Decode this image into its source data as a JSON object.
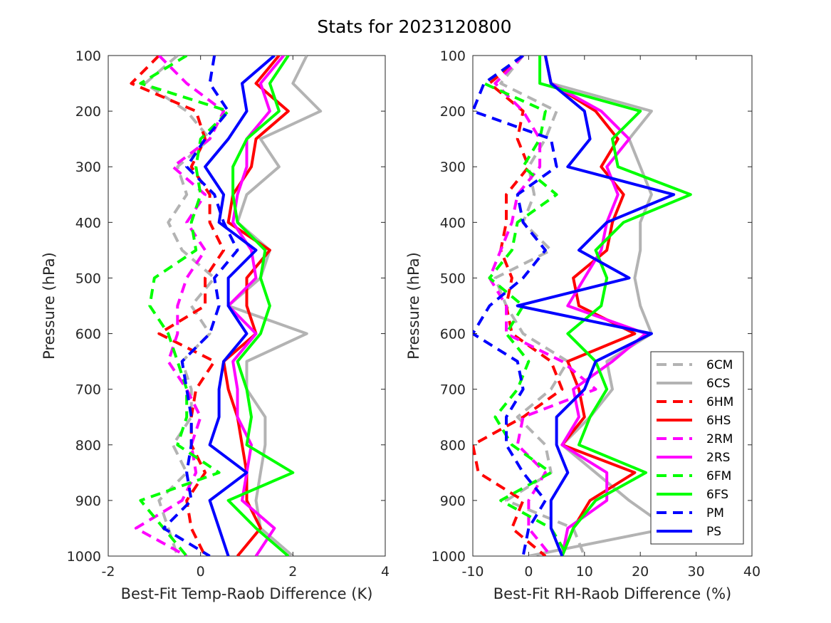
{
  "figure": {
    "title": "Stats for 2023120800"
  },
  "legend": {
    "placement": "lower-right of right panel",
    "entries": [
      {
        "name": "6CM",
        "color": "#b3b3b3",
        "dash": true
      },
      {
        "name": "6CS",
        "color": "#b3b3b3",
        "dash": false
      },
      {
        "name": "6HM",
        "color": "#ff0000",
        "dash": true
      },
      {
        "name": "6HS",
        "color": "#ff0000",
        "dash": false
      },
      {
        "name": "2RM",
        "color": "#ff00ff",
        "dash": true
      },
      {
        "name": "2RS",
        "color": "#ff00ff",
        "dash": false
      },
      {
        "name": "6FM",
        "color": "#00ff00",
        "dash": true
      },
      {
        "name": "6FS",
        "color": "#00ff00",
        "dash": false
      },
      {
        "name": "PM",
        "color": "#0000ff",
        "dash": true
      },
      {
        "name": "PS",
        "color": "#0000ff",
        "dash": false
      }
    ]
  },
  "chart_data": [
    {
      "type": "line",
      "orientation": "profile (x = value, y = pressure, y reversed)",
      "xlabel": "Best-Fit Temp-Raob Difference (K)",
      "ylabel": "Pressure (hPa)",
      "xlim": [
        -2,
        4
      ],
      "ylim": [
        100,
        1000
      ],
      "xticks": [
        "-2",
        "0",
        "2",
        "4"
      ],
      "yticks": [
        "100",
        "200",
        "300",
        "400",
        "500",
        "600",
        "700",
        "800",
        "900",
        "1000"
      ],
      "y": [
        100,
        150,
        200,
        250,
        300,
        350,
        400,
        450,
        500,
        550,
        600,
        650,
        700,
        750,
        800,
        850,
        900,
        950,
        1000
      ],
      "series": [
        {
          "name": "6CM",
          "x": [
            -0.5,
            -1.2,
            -0.3,
            0.2,
            -0.5,
            -0.3,
            -0.7,
            -0.4,
            0.3,
            -0.2,
            0.2,
            -0.4,
            -0.2,
            -0.2,
            -0.6,
            -0.3,
            -0.9,
            -0.7,
            -0.5
          ]
        },
        {
          "name": "6CS",
          "x": [
            2.3,
            2.0,
            2.6,
            1.3,
            1.7,
            1.0,
            0.8,
            1.5,
            1.3,
            0.6,
            2.3,
            1.0,
            1.0,
            1.4,
            1.4,
            1.3,
            1.2,
            1.3,
            2.0
          ]
        },
        {
          "name": "6HM",
          "x": [
            -0.9,
            -1.5,
            -0.1,
            0.1,
            -0.2,
            0.2,
            0.2,
            0.5,
            0.1,
            0.1,
            -0.9,
            0.3,
            -0.1,
            -0.2,
            -0.2,
            0.1,
            -0.3,
            -0.2,
            0.1
          ]
        },
        {
          "name": "6HS",
          "x": [
            1.7,
            1.2,
            1.9,
            1.2,
            1.1,
            0.7,
            0.6,
            1.5,
            1.0,
            1.0,
            1.2,
            0.5,
            0.6,
            0.8,
            0.9,
            1.0,
            1.0,
            1.3,
            0.8
          ]
        },
        {
          "name": "2RM",
          "x": [
            -0.9,
            -0.3,
            0.5,
            0.2,
            -0.6,
            0.1,
            -0.3,
            0.1,
            -0.3,
            -0.5,
            -0.5,
            -0.7,
            -0.3,
            0.0,
            -0.2,
            -0.1,
            -0.4,
            -1.4,
            -0.3
          ]
        },
        {
          "name": "2RS",
          "x": [
            1.8,
            1.3,
            1.5,
            1.0,
            1.0,
            0.8,
            0.7,
            1.1,
            1.2,
            0.6,
            1.2,
            0.7,
            0.8,
            0.8,
            1.1,
            1.0,
            0.9,
            1.6,
            1.2
          ]
        },
        {
          "name": "6FM",
          "x": [
            -0.3,
            -1.3,
            0.6,
            0.0,
            -0.1,
            0.0,
            -0.2,
            -0.1,
            -1.0,
            -1.1,
            -0.7,
            -0.5,
            -0.3,
            -0.3,
            -0.5,
            0.4,
            -1.3,
            -0.8,
            -0.3
          ]
        },
        {
          "name": "6FS",
          "x": [
            1.9,
            1.5,
            1.7,
            1.0,
            0.7,
            0.7,
            0.8,
            1.4,
            1.3,
            1.5,
            1.3,
            0.8,
            1.0,
            1.1,
            1.0,
            2.0,
            0.6,
            1.2,
            1.9
          ]
        },
        {
          "name": "PM",
          "x": [
            0.3,
            0.2,
            0.6,
            0.1,
            -0.3,
            0.3,
            0.5,
            0.8,
            0.3,
            0.4,
            0.2,
            -0.4,
            -0.3,
            -0.2,
            -0.2,
            -0.3,
            -0.2,
            -0.8,
            0.2
          ]
        },
        {
          "name": "PS",
          "x": [
            1.6,
            0.9,
            1.0,
            0.6,
            0.1,
            0.5,
            0.4,
            1.2,
            0.6,
            0.6,
            1.0,
            0.5,
            0.4,
            0.4,
            0.2,
            1.0,
            0.2,
            0.4,
            0.6
          ]
        }
      ]
    },
    {
      "type": "line",
      "orientation": "profile (x = value, y = pressure, y reversed)",
      "xlabel": "Best-Fit RH-Raob Difference (%)",
      "ylabel": "Pressure (hPa)",
      "xlim": [
        -10,
        40
      ],
      "ylim": [
        100,
        1000
      ],
      "xticks": [
        "-10",
        "0",
        "10",
        "20",
        "30",
        "40"
      ],
      "yticks": [
        "100",
        "200",
        "300",
        "400",
        "500",
        "600",
        "700",
        "800",
        "900",
        "1000"
      ],
      "y": [
        100,
        150,
        200,
        250,
        300,
        350,
        400,
        450,
        500,
        550,
        600,
        650,
        700,
        750,
        800,
        850,
        900,
        950,
        1000
      ],
      "series": [
        {
          "name": "6CM",
          "x": [
            -1,
            -5,
            5,
            3,
            0,
            1,
            -1,
            4,
            -6,
            -4,
            -1,
            7,
            4,
            -2,
            3,
            4,
            -4,
            8,
            10
          ]
        },
        {
          "name": "6CS",
          "x": [
            3,
            4,
            22,
            18,
            20,
            22,
            20,
            20,
            19,
            20,
            22,
            14,
            15,
            11,
            6,
            12,
            18,
            25,
            0
          ]
        },
        {
          "name": "6HM",
          "x": [
            -1,
            -7,
            -1,
            -2,
            0,
            -4,
            -4,
            -5,
            -3,
            -4,
            -3,
            4,
            6,
            -1,
            -10,
            -9,
            -1,
            -3,
            3
          ]
        },
        {
          "name": "6HS",
          "x": [
            3,
            4,
            12,
            16,
            13,
            17,
            15,
            14,
            8,
            9,
            19,
            7,
            9,
            10,
            6,
            19,
            11,
            8,
            6
          ]
        },
        {
          "name": "2RM",
          "x": [
            -1,
            -6,
            -1,
            2,
            2,
            -2,
            -3,
            -5,
            -7,
            -4,
            -4,
            6,
            12,
            -1,
            -2,
            3,
            0,
            0,
            4
          ]
        },
        {
          "name": "2RS",
          "x": [
            3,
            4,
            13,
            18,
            14,
            16,
            14,
            13,
            10,
            7,
            21,
            15,
            8,
            9,
            6,
            14,
            14,
            7,
            6
          ]
        },
        {
          "name": "6FM",
          "x": [
            -1,
            -8,
            3,
            2,
            -1,
            5,
            -2,
            -3,
            -7,
            -1,
            -4,
            0,
            -2,
            -6,
            -3,
            4,
            -5,
            4,
            7
          ]
        },
        {
          "name": "6FS",
          "x": [
            2,
            2,
            20,
            15,
            16,
            29,
            17,
            12,
            14,
            13,
            7,
            12,
            14,
            11,
            9,
            21,
            12,
            8,
            6
          ]
        },
        {
          "name": "PM",
          "x": [
            -1,
            -8,
            -10,
            4,
            5,
            -2,
            -1,
            3,
            -1,
            -7,
            -10,
            -2,
            -1,
            -4,
            -4,
            -1,
            3,
            0,
            -1
          ]
        },
        {
          "name": "PS",
          "x": [
            3,
            4,
            10,
            11,
            7,
            26,
            14,
            9,
            18,
            -2,
            22,
            12,
            10,
            5,
            5,
            7,
            4,
            4,
            6
          ]
        }
      ]
    }
  ]
}
